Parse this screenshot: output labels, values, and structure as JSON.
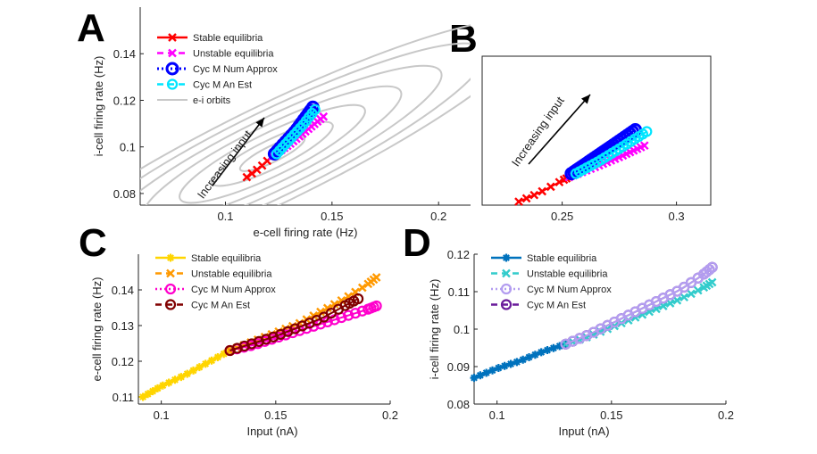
{
  "panel_labels": {
    "a": "A",
    "b": "B",
    "c": "C",
    "d": "D"
  },
  "colors": {
    "stable_A": "#ff0000",
    "unstable_A": "#ff00ff",
    "num_A": "#0000ff",
    "an_A": "#00e5ff",
    "orbit": "#c8c8c8",
    "stable_C": "#ffd500",
    "unstable_C": "#ff9900",
    "num_C": "#ff00cc",
    "an_C": "#800000",
    "stable_D": "#0072bd",
    "unstable_D": "#33cccc",
    "num_D": "#b39df0",
    "an_D": "#6a1b9a"
  },
  "chart_data": [
    {
      "id": "A",
      "type": "line",
      "xlabel": "e-cell firing rate (Hz)",
      "ylabel": "i-cell firing rate (Hz)",
      "xlim": [
        0.06,
        0.215
      ],
      "ylim": [
        0.075,
        0.16
      ],
      "xticks": [
        "0.1",
        "0.15",
        "0.2"
      ],
      "yticks": [
        "0.08",
        "0.1",
        "0.12",
        "0.14"
      ],
      "legend": [
        "Stable equilibria",
        "Unstable equilibria",
        "Cyc M Num Approx",
        "Cyc M An Est",
        "e-i orbits"
      ],
      "annotation": "Increasing input",
      "series": [
        {
          "name": "Stable equilibria",
          "x": [
            0.11,
            0.116,
            0.122
          ],
          "y": [
            0.087,
            0.091,
            0.096
          ]
        },
        {
          "name": "Unstable equilibria",
          "x": [
            0.122,
            0.13,
            0.138,
            0.146
          ],
          "y": [
            0.096,
            0.101,
            0.107,
            0.113
          ]
        },
        {
          "name": "Cyc M Num Approx",
          "x": [
            0.123,
            0.128,
            0.133,
            0.137,
            0.141
          ],
          "y": [
            0.097,
            0.102,
            0.107,
            0.112,
            0.117
          ]
        },
        {
          "name": "Cyc M An Est",
          "x": [
            0.124,
            0.13,
            0.136,
            0.142
          ],
          "y": [
            0.097,
            0.103,
            0.109,
            0.116
          ]
        }
      ]
    },
    {
      "id": "B",
      "type": "line",
      "xlim": [
        0.215,
        0.315
      ],
      "ylim": [
        0.075,
        0.16
      ],
      "xticks": [
        "0.25",
        "0.3"
      ],
      "annotation": "Increasing input",
      "series": [
        {
          "name": "Stable equilibria",
          "x": [
            0.231,
            0.24,
            0.25,
            0.253
          ],
          "y": [
            0.077,
            0.082,
            0.089,
            0.091
          ]
        },
        {
          "name": "Unstable equilibria",
          "x": [
            0.253,
            0.265,
            0.276,
            0.286
          ],
          "y": [
            0.091,
            0.097,
            0.103,
            0.109
          ]
        },
        {
          "name": "Cyc M Num Approx",
          "x": [
            0.254,
            0.263,
            0.272,
            0.282
          ],
          "y": [
            0.093,
            0.101,
            0.109,
            0.118
          ]
        },
        {
          "name": "Cyc M An Est",
          "x": [
            0.256,
            0.266,
            0.276,
            0.287
          ],
          "y": [
            0.093,
            0.1,
            0.108,
            0.117
          ]
        }
      ]
    },
    {
      "id": "C",
      "type": "line",
      "xlabel": "Input (nA)",
      "ylabel": "e-cell firing rate (Hz)",
      "xlim": [
        0.09,
        0.2
      ],
      "ylim": [
        0.108,
        0.15
      ],
      "xticks": [
        "0.1",
        "0.15",
        "0.2"
      ],
      "yticks": [
        "0.11",
        "0.12",
        "0.13",
        "0.14"
      ],
      "legend": [
        "Stable equilibria",
        "Unstable equilibria",
        "Cyc M Num Approx",
        "Cyc M An Est"
      ],
      "series": [
        {
          "name": "Stable equilibria",
          "x": [
            0.092,
            0.1,
            0.11,
            0.12,
            0.13
          ],
          "y": [
            0.11,
            0.113,
            0.116,
            0.1195,
            0.123
          ]
        },
        {
          "name": "Unstable equilibria",
          "x": [
            0.13,
            0.14,
            0.15,
            0.16,
            0.17,
            0.18,
            0.19,
            0.194
          ],
          "y": [
            0.123,
            0.1255,
            0.128,
            0.1305,
            0.134,
            0.1375,
            0.1415,
            0.1435
          ]
        },
        {
          "name": "Cyc M Num Approx",
          "x": [
            0.13,
            0.14,
            0.15,
            0.16,
            0.17,
            0.18,
            0.19,
            0.194
          ],
          "y": [
            0.123,
            0.1245,
            0.1265,
            0.1285,
            0.1305,
            0.1325,
            0.1345,
            0.1355
          ]
        },
        {
          "name": "Cyc M An Est",
          "x": [
            0.13,
            0.14,
            0.15,
            0.16,
            0.17,
            0.18,
            0.186
          ],
          "y": [
            0.123,
            0.125,
            0.127,
            0.1295,
            0.132,
            0.1355,
            0.1375
          ]
        }
      ]
    },
    {
      "id": "D",
      "type": "line",
      "xlabel": "Input (nA)",
      "ylabel": "i-cell firing rate (Hz)",
      "xlim": [
        0.09,
        0.2
      ],
      "ylim": [
        0.08,
        0.12
      ],
      "xticks": [
        "0.1",
        "0.15",
        "0.2"
      ],
      "yticks": [
        "0.08",
        "0.09",
        "0.1",
        "0.11",
        "0.12"
      ],
      "legend": [
        "Stable equilibria",
        "Unstable equilibria",
        "Cyc M Num Approx",
        "Cyc M An Est"
      ],
      "series": [
        {
          "name": "Stable equilibria",
          "x": [
            0.09,
            0.1,
            0.11,
            0.12,
            0.13
          ],
          "y": [
            0.087,
            0.0895,
            0.0915,
            0.094,
            0.096
          ]
        },
        {
          "name": "Unstable equilibria",
          "x": [
            0.13,
            0.14,
            0.15,
            0.16,
            0.17,
            0.18,
            0.19,
            0.194
          ],
          "y": [
            0.096,
            0.098,
            0.1005,
            0.103,
            0.1055,
            0.108,
            0.111,
            0.1125
          ]
        },
        {
          "name": "Cyc M Num Approx",
          "x": [
            0.13,
            0.14,
            0.15,
            0.16,
            0.17,
            0.18,
            0.19,
            0.194
          ],
          "y": [
            0.096,
            0.0985,
            0.1015,
            0.1045,
            0.1075,
            0.1105,
            0.1145,
            0.1165
          ]
        },
        {
          "name": "Cyc M An Est",
          "x": [
            0.13,
            0.14,
            0.15,
            0.16,
            0.17,
            0.18,
            0.19,
            0.194
          ],
          "y": [
            0.096,
            0.0985,
            0.1015,
            0.1045,
            0.1075,
            0.1105,
            0.1145,
            0.1165
          ]
        }
      ]
    }
  ]
}
